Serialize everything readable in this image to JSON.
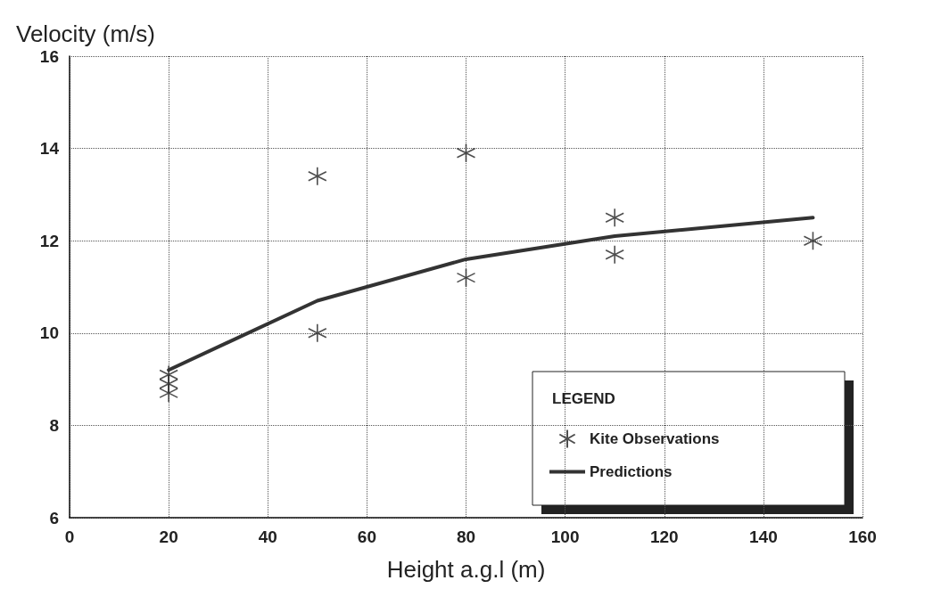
{
  "chart_data": {
    "type": "scatter",
    "ylabel": "Velocity (m/s)",
    "xlabel": "Height a.g.l (m)",
    "legend_title": "LEGEND",
    "series": [
      {
        "name": "Kite Observations",
        "color": "#222222",
        "marker": "cross",
        "x": [
          20,
          20,
          20,
          50,
          50,
          80,
          80,
          110,
          110,
          150
        ],
        "values": [
          9.1,
          8.9,
          8.7,
          13.4,
          10.0,
          13.9,
          11.2,
          12.5,
          11.7,
          12.0
        ]
      },
      {
        "name": "Predictions",
        "type": "line",
        "color": "#333333",
        "marker": "none",
        "line_style": "solid",
        "x": [
          20,
          50,
          80,
          110,
          150
        ],
        "values": [
          9.2,
          10.7,
          11.6,
          12.1,
          12.5
        ]
      }
    ],
    "xlim": [
      0,
      160
    ],
    "xticks": [
      0,
      20,
      40,
      60,
      80,
      100,
      120,
      140,
      160
    ],
    "ylim": [
      6,
      16
    ],
    "yticks": [
      6,
      8,
      10,
      12,
      14,
      16
    ],
    "grid": true,
    "legend": "bottom right"
  }
}
